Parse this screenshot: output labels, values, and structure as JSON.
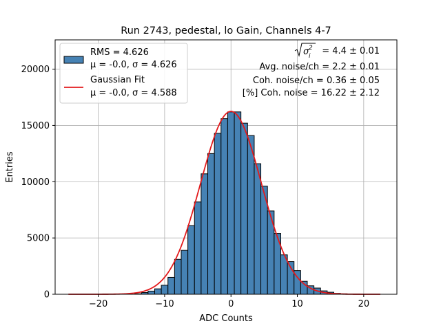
{
  "chart_data": {
    "type": "bar",
    "title": "Run 2743, pedestal, lo Gain, Channels 4-7",
    "xlabel": "ADC Counts",
    "ylabel": "Entries",
    "xlim": [
      -26.5,
      25.0
    ],
    "ylim": [
      0,
      22600
    ],
    "grid": true,
    "xticks": [
      -20,
      -10,
      0,
      10,
      20
    ],
    "xtick_labels": [
      "−20",
      "−10",
      "0",
      "10",
      "20"
    ],
    "yticks": [
      0,
      5000,
      10000,
      15000,
      20000
    ],
    "ytick_labels": [
      "0",
      "5000",
      "10000",
      "15000",
      "20000"
    ],
    "bar_color": "#4682b4",
    "fit_color": "#e31a1c",
    "histogram": {
      "bin_width": 1,
      "x": [
        -14,
        -13,
        -12,
        -11,
        -10,
        -9,
        -8,
        -7,
        -6,
        -5,
        -4,
        -3,
        -2,
        -1,
        0,
        1,
        2,
        3,
        4,
        5,
        6,
        7,
        8,
        9,
        10,
        11,
        12,
        13,
        14,
        15,
        16,
        17
      ],
      "values": [
        40,
        150,
        280,
        480,
        800,
        1500,
        3100,
        3900,
        6100,
        8200,
        10700,
        12500,
        14300,
        15600,
        16200,
        16200,
        15200,
        14100,
        11600,
        9600,
        7400,
        5400,
        3500,
        2900,
        2100,
        1150,
        750,
        550,
        300,
        180,
        80,
        40
      ]
    },
    "gaussian_fit": {
      "mu": 0.0,
      "sigma": 4.588,
      "amplitude": 16250,
      "x_range": [
        -24.5,
        22.5
      ]
    },
    "legend": {
      "placement": "upper-left",
      "entries": [
        {
          "kind": "patch",
          "line1": "RMS = 4.626",
          "line2": "μ = -0.0, σ = 4.626"
        },
        {
          "kind": "line",
          "line1": "Gaussian Fit",
          "line2": "μ = -0.0, σ = 4.588"
        }
      ]
    },
    "annotations": {
      "sigma_sum_value": " = 4.4 ± 0.01",
      "avg_noise": "Avg. noise/ch = 2.2 ± 0.01",
      "coh_noise": "Coh. noise/ch = 0.36 ± 0.05",
      "pct_coh_noise": "[%] Coh. noise = 16.22 ± 2.12"
    }
  }
}
